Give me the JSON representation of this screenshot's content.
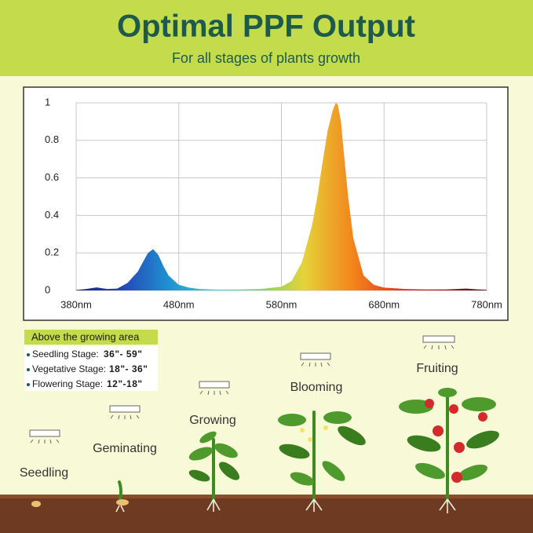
{
  "header": {
    "title": "Optimal PPF Output",
    "subtitle": "For all stages of plants growth"
  },
  "chart_data": {
    "type": "area",
    "x": [
      380,
      390,
      400,
      410,
      420,
      430,
      440,
      445,
      450,
      455,
      460,
      465,
      470,
      480,
      490,
      500,
      520,
      540,
      560,
      580,
      590,
      600,
      610,
      615,
      620,
      625,
      630,
      633,
      635,
      638,
      640,
      645,
      650,
      660,
      670,
      680,
      700,
      720,
      740,
      760,
      770,
      780
    ],
    "values": [
      0.002,
      0.008,
      0.016,
      0.008,
      0.01,
      0.04,
      0.1,
      0.15,
      0.2,
      0.22,
      0.19,
      0.13,
      0.08,
      0.03,
      0.015,
      0.008,
      0.004,
      0.005,
      0.008,
      0.02,
      0.05,
      0.15,
      0.35,
      0.5,
      0.68,
      0.85,
      0.96,
      1.0,
      0.99,
      0.9,
      0.78,
      0.5,
      0.28,
      0.08,
      0.03,
      0.015,
      0.008,
      0.005,
      0.005,
      0.01,
      0.006,
      0.003
    ],
    "gradient": [
      "#1a237e",
      "#2445b8",
      "#1f8fd0",
      "#3ecbd8",
      "#7ed46a",
      "#e6d23a",
      "#f28a1c",
      "#e8401c",
      "#b01414",
      "#5a0a0a"
    ],
    "xlim": [
      380,
      780
    ],
    "ylim": [
      0,
      1
    ],
    "xticks": [
      {
        "value": 380,
        "label": "380nm"
      },
      {
        "value": 480,
        "label": "480nm"
      },
      {
        "value": 580,
        "label": "580nm"
      },
      {
        "value": 680,
        "label": "680nm"
      },
      {
        "value": 780,
        "label": "780nm"
      }
    ],
    "yticks": [
      0,
      0.2,
      0.4,
      0.6,
      0.8,
      1
    ],
    "grid": true
  },
  "legend": {
    "title": "Above the growing area",
    "stages": [
      {
        "name": "Seedling Stage:",
        "distance": "36\"- 59\""
      },
      {
        "name": "Vegetative Stage:",
        "distance": "18\"- 36\""
      },
      {
        "name": "Flowering Stage:",
        "distance": "12\"-18\""
      }
    ]
  },
  "plants": [
    "Seedling",
    "Geminating",
    "Growing",
    "Blooming",
    "Fruiting"
  ]
}
